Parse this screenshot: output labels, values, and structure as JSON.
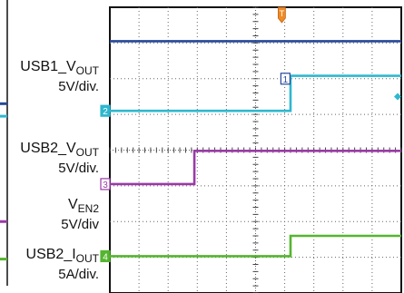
{
  "chart_data": {
    "type": "line",
    "title": "",
    "grid": true,
    "grid_divisions": {
      "x": 10,
      "y": 8
    },
    "trigger_marker": "T",
    "x_range_div": [
      0,
      10
    ],
    "y_range_div": [
      0,
      8
    ],
    "channel_labels": [
      {
        "name_main": "USB1_V",
        "name_sub": "OUT",
        "scale": "5V/div."
      },
      {
        "name_main": "USB2_V",
        "name_sub": "OUT",
        "scale": "5V/div."
      },
      {
        "name_main": "V",
        "name_sub": "EN2",
        "scale": "5V/div"
      },
      {
        "name_main": "USB2_I",
        "name_sub": "OUT",
        "scale": "5A/div."
      }
    ],
    "series": [
      {
        "marker": "1",
        "color": "#27479a",
        "points": [
          [
            0,
            7.05
          ],
          [
            10,
            7.05
          ]
        ]
      },
      {
        "marker": "2",
        "color": "#2fb7cf",
        "points": [
          [
            0,
            5.1
          ],
          [
            6.2,
            5.1
          ],
          [
            6.2,
            6.08
          ],
          [
            10,
            6.08
          ]
        ]
      },
      {
        "marker": "3",
        "color": "#9a3aa6",
        "points": [
          [
            0,
            3.05
          ],
          [
            2.9,
            3.05
          ],
          [
            2.9,
            3.98
          ],
          [
            10,
            3.98
          ]
        ]
      },
      {
        "marker": "4",
        "color": "#55b52f",
        "points": [
          [
            0,
            1.03
          ],
          [
            6.2,
            1.03
          ],
          [
            6.2,
            1.6
          ],
          [
            10,
            1.6
          ]
        ]
      }
    ]
  }
}
